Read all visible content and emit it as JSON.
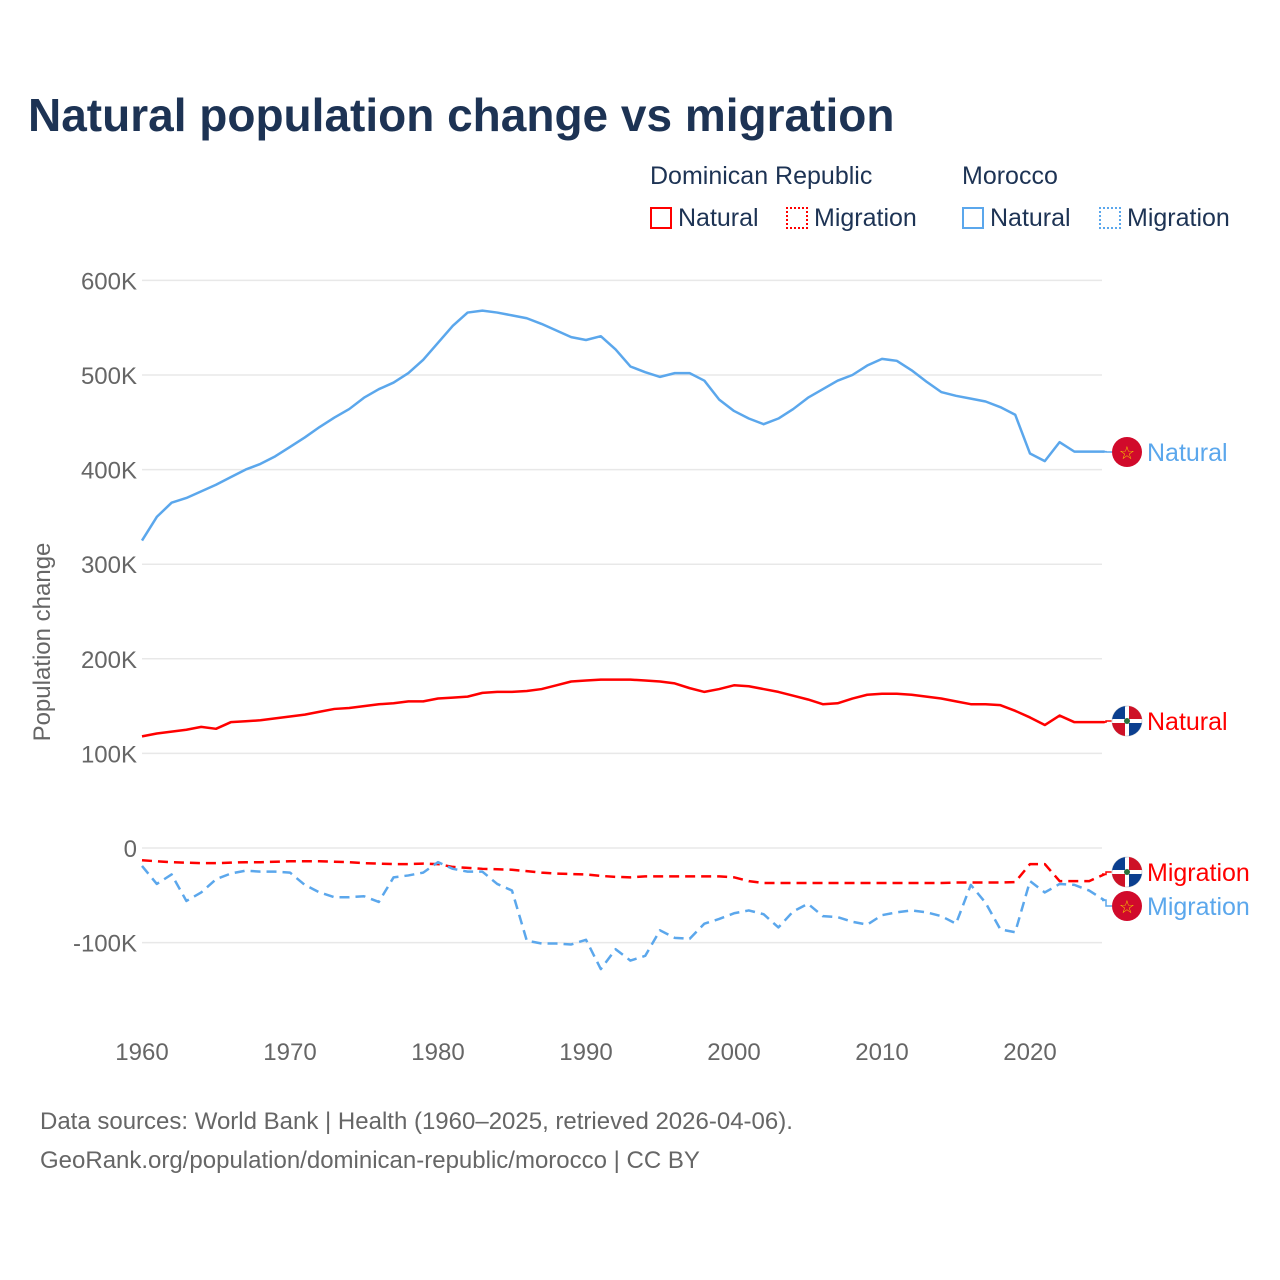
{
  "title": "Natural population change vs migration",
  "legend": {
    "groups": [
      {
        "country": "Dominican Republic",
        "natural": "Natural",
        "migration": "Migration",
        "color": "#ff0000"
      },
      {
        "country": "Morocco",
        "natural": "Natural",
        "migration": "Migration",
        "color": "#5ba7ec"
      }
    ]
  },
  "footer": {
    "line1": "Data sources: World Bank | Health (1960–2025, retrieved 2026-04-06).",
    "line2": "GeoRank.org/population/dominican-republic/morocco | CC BY"
  },
  "chart_data": {
    "type": "line",
    "title": "Natural population change vs migration",
    "ylabel": "Population change",
    "xlabel": "",
    "xlim": [
      1960,
      2025
    ],
    "ylim": [
      -150000,
      600000
    ],
    "x_ticks": [
      1960,
      1970,
      1980,
      1990,
      2000,
      2010,
      2020
    ],
    "x_tick_labels": [
      "1960",
      "1970",
      "1980",
      "1990",
      "2000",
      "2010",
      "2020"
    ],
    "y_ticks": [
      -100000,
      0,
      100000,
      200000,
      300000,
      400000,
      500000,
      600000
    ],
    "y_tick_labels": [
      "-100K",
      "0",
      "100K",
      "200K",
      "300K",
      "400K",
      "500K",
      "600K"
    ],
    "grid": true,
    "x_start": 1960,
    "series": [
      {
        "name": "Morocco Natural",
        "label": "Natural",
        "color": "#5ba7ec",
        "dash": false,
        "values": [
          325,
          350,
          365,
          370,
          377,
          384,
          392,
          400,
          406,
          414,
          424,
          434,
          445,
          455,
          464,
          476,
          485,
          492,
          502,
          516,
          534,
          552,
          566,
          568,
          566,
          563,
          560,
          554,
          547,
          540,
          537,
          541,
          527,
          509,
          503,
          498,
          502,
          502,
          494,
          474,
          462,
          454,
          448,
          454,
          464,
          476,
          485,
          494,
          500,
          510,
          517,
          515,
          505,
          493,
          482,
          478,
          475,
          472,
          466,
          458,
          417,
          409,
          429,
          419,
          419,
          419
        ]
      },
      {
        "name": "Dominican Republic Natural",
        "label": "Natural",
        "color": "#ff0000",
        "dash": false,
        "values": [
          118,
          121,
          123,
          125,
          128,
          126,
          133,
          134,
          135,
          137,
          139,
          141,
          144,
          147,
          148,
          150,
          152,
          153,
          155,
          155,
          158,
          159,
          160,
          164,
          165,
          165,
          166,
          168,
          172,
          176,
          177,
          178,
          178,
          178,
          177,
          176,
          174,
          169,
          165,
          168,
          172,
          171,
          168,
          165,
          161,
          157,
          152,
          153,
          158,
          162,
          163,
          163,
          162,
          160,
          158,
          155,
          152,
          152,
          151,
          145,
          138,
          130,
          140,
          133,
          133,
          133
        ]
      },
      {
        "name": "Dominican Republic Migration",
        "label": "Migration",
        "color": "#ff0000",
        "dash": true,
        "values": [
          -13,
          -14,
          -15,
          -15.5,
          -16,
          -16,
          -15.5,
          -15,
          -15,
          -14.5,
          -14,
          -14,
          -14,
          -14.5,
          -15,
          -16,
          -16.5,
          -17,
          -17,
          -16.5,
          -17,
          -20,
          -21,
          -22,
          -22.5,
          -23,
          -24.5,
          -26,
          -27,
          -27.5,
          -28,
          -29.5,
          -30.5,
          -31,
          -30,
          -30,
          -30,
          -30,
          -30,
          -30,
          -31,
          -35,
          -37,
          -37,
          -37,
          -37,
          -37,
          -37,
          -37,
          -37,
          -37,
          -37,
          -37,
          -37,
          -37,
          -36.5,
          -36.5,
          -36.5,
          -36.5,
          -36,
          -17,
          -17,
          -35,
          -35,
          -35,
          -28
        ]
      },
      {
        "name": "Morocco Migration",
        "label": "Migration",
        "color": "#5ba7ec",
        "dash": true,
        "values": [
          -19,
          -38,
          -28,
          -56,
          -47,
          -33,
          -27,
          -24,
          -25,
          -25,
          -26,
          -39,
          -47,
          -52,
          -52,
          -51,
          -57,
          -31,
          -29,
          -26,
          -15,
          -22,
          -25,
          -25,
          -38,
          -45,
          -98,
          -101,
          -101,
          -102,
          -97,
          -128,
          -107,
          -119,
          -114,
          -87,
          -95,
          -96,
          -80,
          -75,
          -69,
          -66,
          -70,
          -84,
          -67,
          -59,
          -72,
          -73,
          -78,
          -81,
          -71,
          -68,
          -66,
          -68,
          -72,
          -80,
          -39,
          -58,
          -86,
          -89,
          -35,
          -47,
          -38,
          -39,
          -45,
          -55
        ]
      }
    ],
    "value_unit": "thousands",
    "end_labels": [
      "Natural",
      "Natural",
      "Migration",
      "Migration"
    ]
  }
}
